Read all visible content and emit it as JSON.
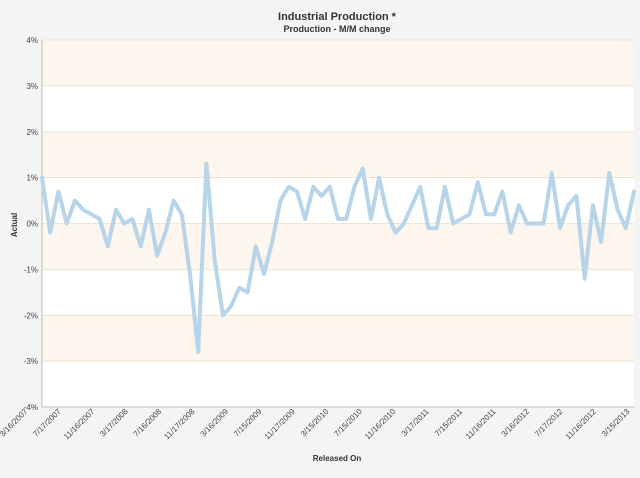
{
  "chart_data": {
    "type": "line",
    "title": "Industrial Production *",
    "subtitle": "Production - M/M change",
    "xlabel": "Released On",
    "ylabel": "Actual",
    "ylim": [
      -4,
      4
    ],
    "yticks": [
      "-4%",
      "-3%",
      "-2%",
      "-1%",
      "0%",
      "1%",
      "2%",
      "3%",
      "4%"
    ],
    "xtick_labels": [
      "3/16/2007",
      "7/17/2007",
      "11/16/2007",
      "3/17/2008",
      "7/16/2008",
      "11/17/2008",
      "3/16/2009",
      "7/15/2009",
      "11/17/2009",
      "3/15/2010",
      "7/15/2010",
      "11/16/2010",
      "3/17/2011",
      "7/15/2011",
      "11/16/2011",
      "3/16/2012",
      "7/17/2012",
      "11/16/2012",
      "3/15/2013"
    ],
    "grid": true,
    "line_color": "#b8d4e8",
    "band_color": "#fdf6ee",
    "series": [
      {
        "values": [
          1.0,
          -0.2,
          0.7,
          0.0,
          0.5,
          0.3,
          0.2,
          0.1,
          -0.5,
          0.3,
          0.0,
          0.1,
          -0.5,
          0.3,
          -0.7,
          -0.2,
          0.5,
          0.2,
          -1.1,
          -2.8,
          1.3,
          -0.8,
          -2.0,
          -1.8,
          -1.4,
          -1.5,
          -0.5,
          -1.1,
          -0.4,
          0.5,
          0.8,
          0.7,
          0.1,
          0.8,
          0.6,
          0.8,
          0.1,
          0.1,
          0.8,
          1.2,
          0.1,
          1.0,
          0.2,
          -0.2,
          0.0,
          0.4,
          0.8,
          -0.1,
          -0.1,
          0.8,
          0.0,
          0.1,
          0.2,
          0.9,
          0.2,
          0.2,
          0.7,
          -0.2,
          0.4,
          0.0,
          0.0,
          0.0,
          1.1,
          -0.1,
          0.4,
          0.6,
          -1.2,
          0.4,
          -0.4,
          1.1,
          0.3,
          -0.1,
          0.7
        ]
      }
    ]
  }
}
